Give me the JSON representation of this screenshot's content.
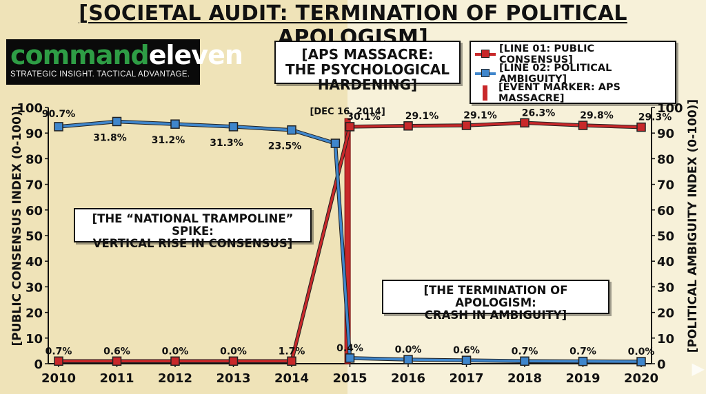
{
  "title": "[SOCIETAL AUDIT: TERMINATION OF POLITICAL APOLOGISM]",
  "logo": {
    "word1": "command",
    "word2": "eleven",
    "tagline": "STRATEGIC INSIGHT. TACTICAL ADVANTAGE."
  },
  "legend": {
    "line01": "[LINE 01: PUBLIC CONSENSUS]",
    "line02": "[LINE 02: POLITICAL AMBIGUITY]",
    "marker": "[EVENT MARKER: APS MASSACRE]"
  },
  "annotations": {
    "event_box": [
      "[APS MASSACRE:",
      "THE PSYCHOLOGICAL HARDENING]"
    ],
    "date_label": "[DEC 16, 2014]",
    "spike_box": [
      "[THE “NATIONAL TRAMPOLINE” SPIKE:",
      "VERTICAL RISE IN CONSENSUS]"
    ],
    "crash_box": [
      "[THE TERMINATION OF APOLOGISM:",
      "CRASH IN AMBIGUITY]"
    ]
  },
  "colors": {
    "consensus": "#c8282a",
    "ambiguity": "#3f86cc",
    "marker": "#c8282a",
    "pre_event_bg": "#efe3b8",
    "post_event_bg": "#f7f1d9"
  },
  "icons": {
    "play": "play-icon"
  },
  "chart_data": {
    "type": "line",
    "x_ticks": [
      "2010",
      "2011",
      "2012",
      "2013",
      "2014",
      "2015",
      "2016",
      "2017",
      "2018",
      "2019",
      "2020"
    ],
    "ylabel_left": "[PUBLIC CONSENSUS INDEX (0-100)]",
    "ylabel_right": "[POLITICAL AMBIGUITY INDEX (0-100)]",
    "ylim": [
      0,
      100
    ],
    "y_ticks": [
      0,
      10,
      20,
      30,
      40,
      50,
      60,
      70,
      80,
      90,
      100
    ],
    "event": {
      "x": 2014.96,
      "label": "[DEC 16, 2014]"
    },
    "series": [
      {
        "name": "[LINE 01: PUBLIC CONSENSUS]",
        "color": "#c8282a",
        "x": [
          2010,
          2011,
          2012,
          2013,
          2014,
          2015,
          2016,
          2017,
          2018,
          2019,
          2020
        ],
        "y": [
          1,
          1,
          1,
          1,
          1,
          92.5,
          92.8,
          93,
          94,
          93,
          92.3
        ],
        "labels": [
          "0.7%",
          "0.6%",
          "0.0%",
          "0.0%",
          "1.7%",
          "30.1%",
          "29.1%",
          "29.1%",
          "26.3%",
          "29.8%",
          "29.3%"
        ]
      },
      {
        "name": "[LINE 02: POLITICAL AMBIGUITY]",
        "color": "#3f86cc",
        "x": [
          2010,
          2011,
          2012,
          2013,
          2014,
          2014.75,
          2015,
          2016,
          2017,
          2018,
          2019,
          2020
        ],
        "y": [
          92.5,
          94.5,
          93.5,
          92.5,
          91.2,
          86,
          2.2,
          1.6,
          1.3,
          1,
          0.9,
          0.8
        ],
        "labels": [
          "90.7%",
          "31.8%",
          "31.2%",
          "31.3%",
          "23.5%",
          "",
          "0.4%",
          "0.0%",
          "0.6%",
          "0.7%",
          "0.7%",
          "0.0%"
        ]
      }
    ],
    "grid": false,
    "legend_position": "top-right"
  }
}
